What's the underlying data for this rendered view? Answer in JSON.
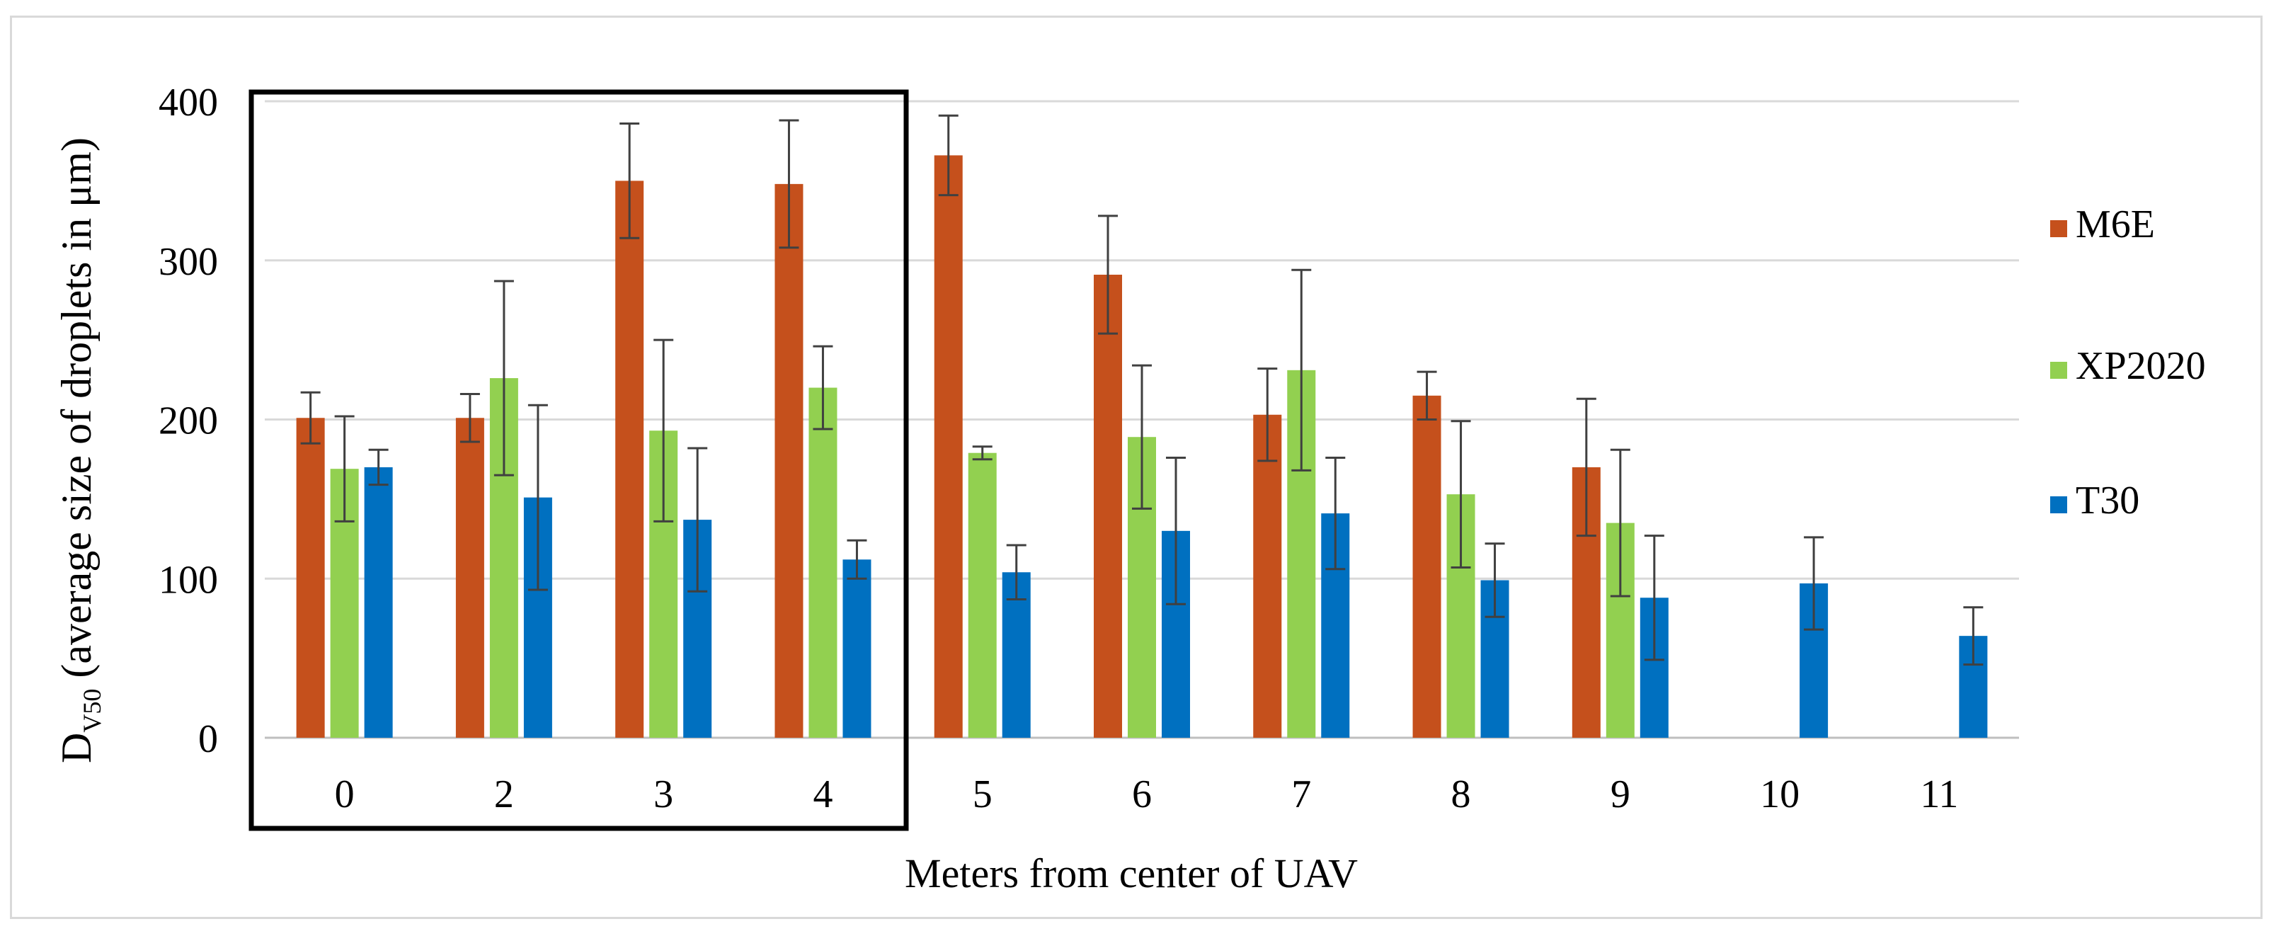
{
  "chart_data": {
    "type": "bar",
    "title": "",
    "xlabel": "Meters from center of UAV",
    "ylabel_main": "D",
    "ylabel_subscript": "V50",
    "ylabel_rest": " (average size of droplets in μm)",
    "ylim": [
      0,
      400
    ],
    "yticks": [
      0,
      100,
      200,
      300,
      400
    ],
    "grid": true,
    "legend_position": "right",
    "highlight_box": "categories 0-4",
    "categories": [
      "0",
      "2",
      "3",
      "4",
      "5",
      "6",
      "7",
      "8",
      "9",
      "10",
      "11"
    ],
    "series": [
      {
        "name": "M6E",
        "color": "#c5501c",
        "values": [
          201,
          201,
          350,
          348,
          366,
          291,
          203,
          215,
          170,
          null,
          null
        ],
        "errors": [
          16,
          15,
          36,
          40,
          25,
          37,
          29,
          15,
          43,
          null,
          null
        ]
      },
      {
        "name": "XP2020",
        "color": "#92d050",
        "values": [
          169,
          226,
          193,
          220,
          179,
          189,
          231,
          153,
          135,
          null,
          null
        ],
        "errors": [
          33,
          61,
          57,
          26,
          4,
          45,
          63,
          46,
          46,
          null,
          null
        ]
      },
      {
        "name": "T30",
        "color": "#0070c0",
        "values": [
          170,
          151,
          137,
          112,
          104,
          130,
          141,
          99,
          88,
          97,
          64
        ],
        "errors": [
          11,
          58,
          45,
          12,
          17,
          46,
          35,
          23,
          39,
          29,
          18
        ]
      }
    ]
  }
}
